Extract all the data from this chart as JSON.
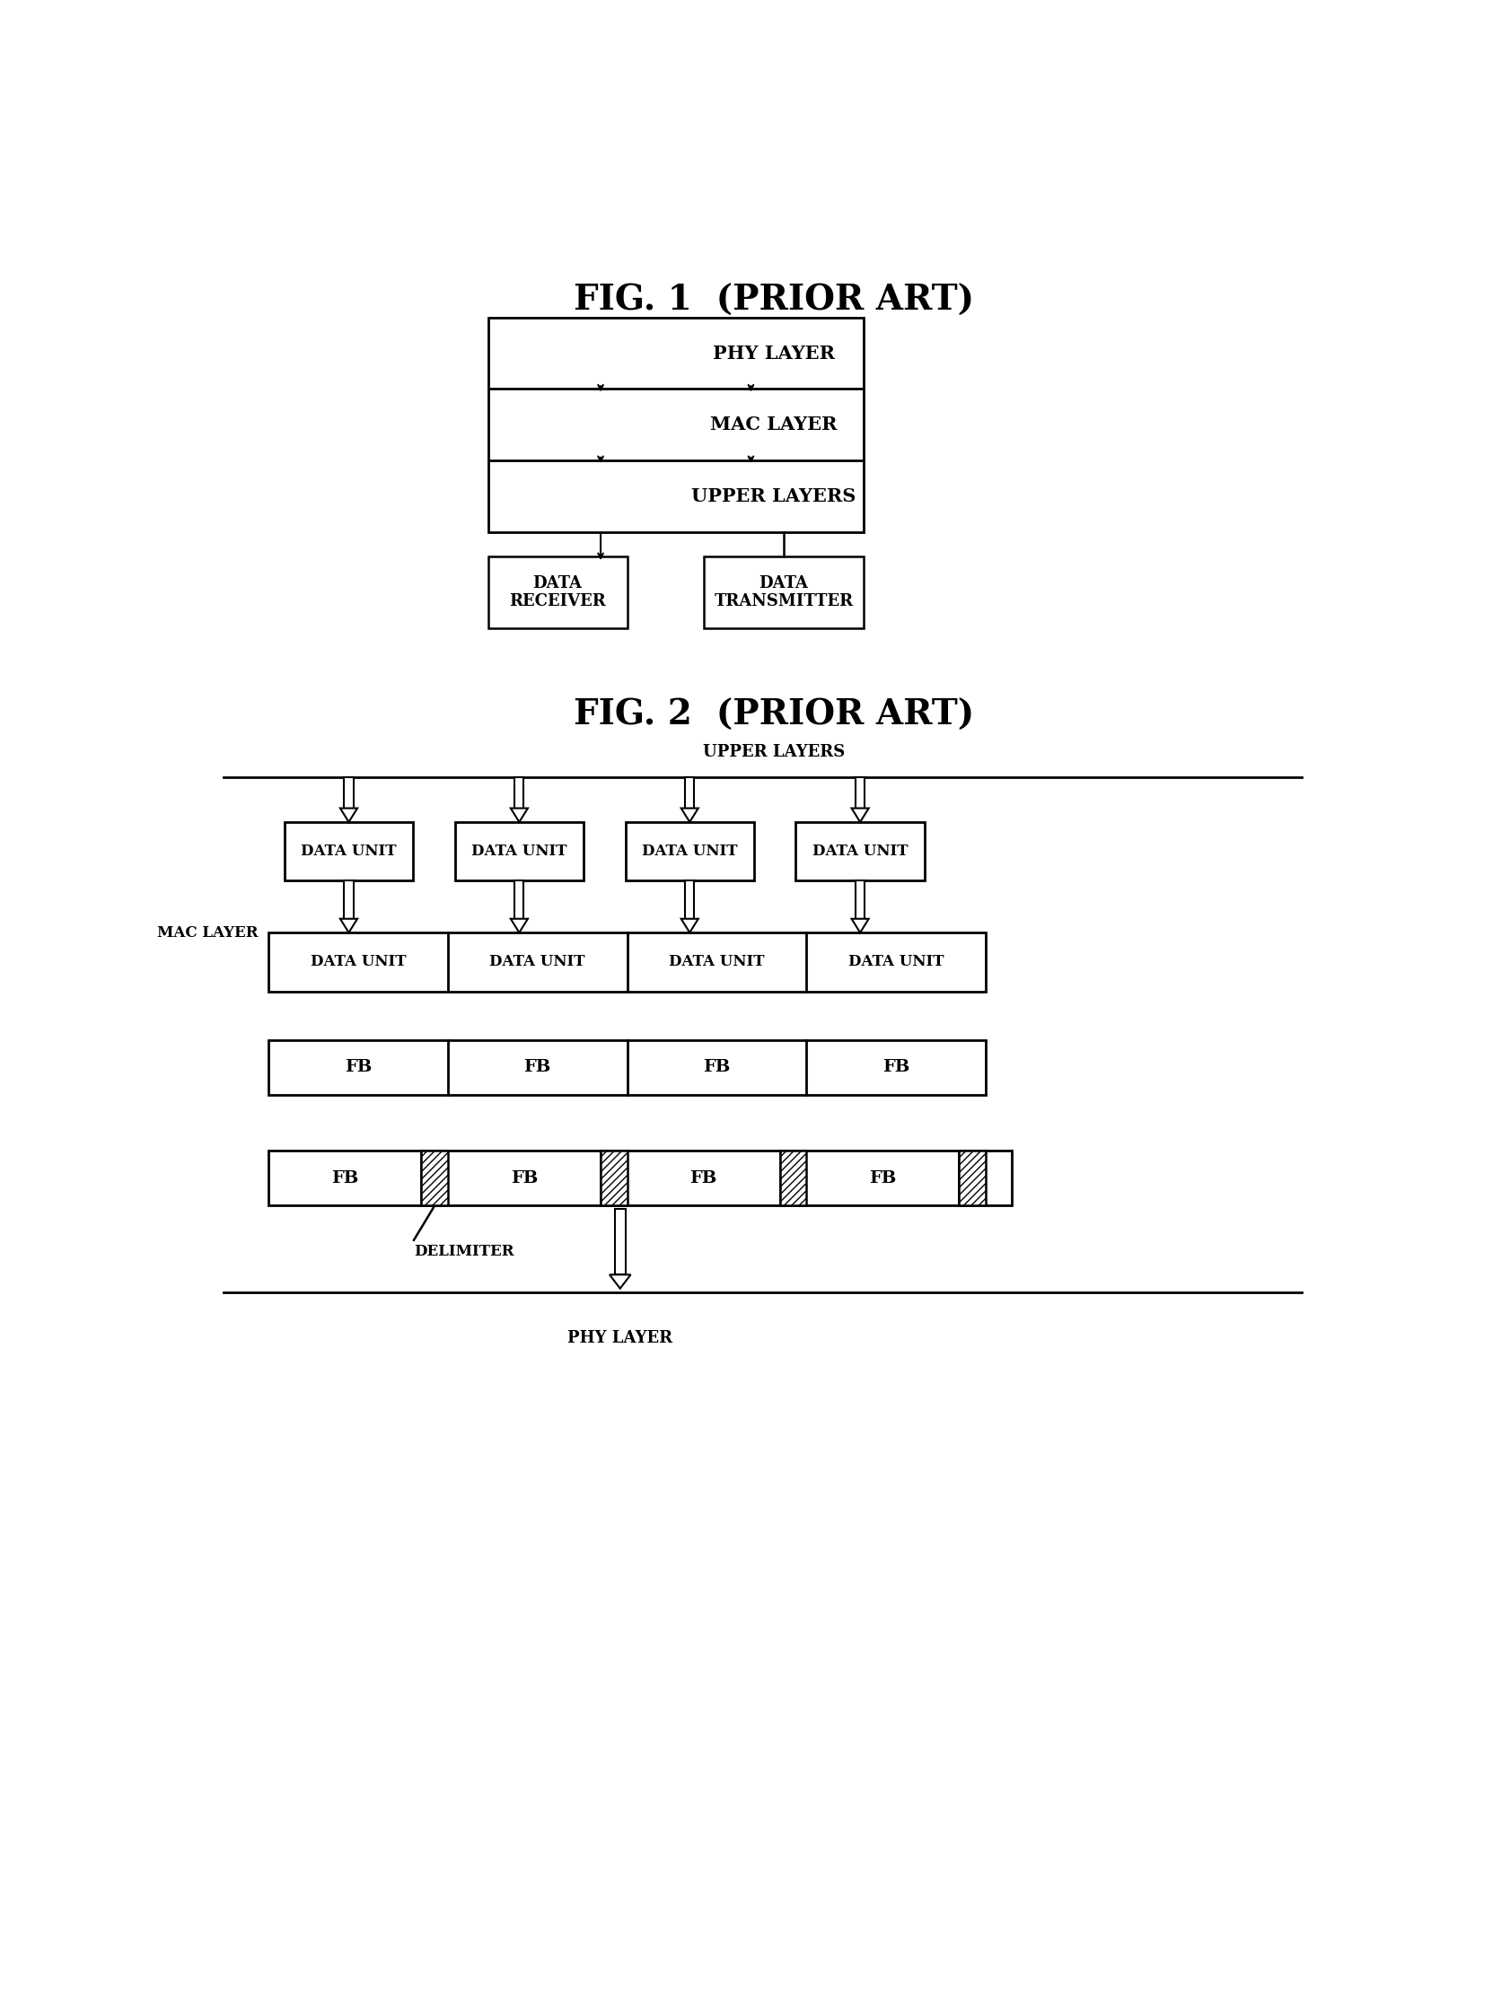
{
  "fig1_title": "FIG. 1  (PRIOR ART)",
  "fig2_title": "FIG. 2  (PRIOR ART)",
  "fig1_upper_layers": "UPPER LAYERS",
  "fig1_mac_layer": "MAC LAYER",
  "fig1_phy_layer": "PHY LAYER",
  "fig1_data_receiver": "DATA\nRECEIVER",
  "fig1_data_transmitter": "DATA\nTRANSMITTER",
  "fig2_upper_layers": "UPPER LAYERS",
  "fig2_mac_layer": "MAC LAYER",
  "fig2_data_unit": "DATA UNIT",
  "fig2_fb": "FB",
  "fig2_delimiter": "DELIMITER",
  "fig2_phy_layer": "PHY LAYER",
  "bg": "#ffffff"
}
